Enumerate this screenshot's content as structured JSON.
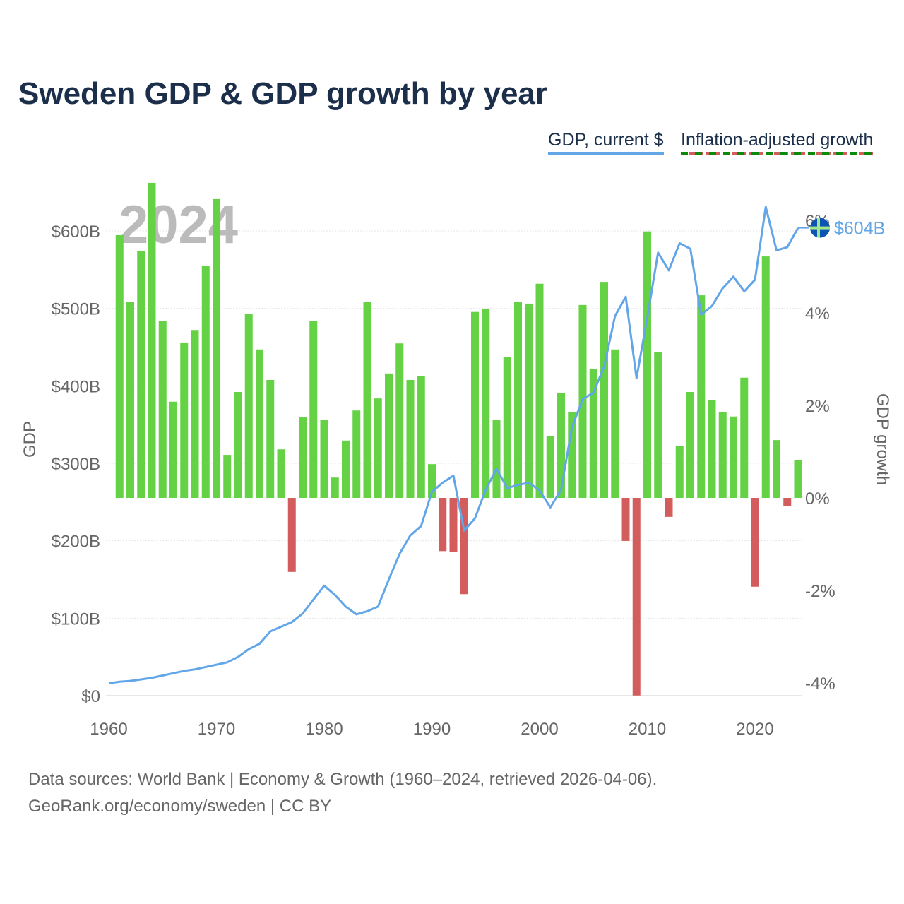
{
  "title": "Sweden GDP & GDP growth by year",
  "legend": {
    "gdp": "GDP, current $",
    "growth": "Inflation-adjusted growth"
  },
  "watermark_year": "2024",
  "end_label": "$604B",
  "source_line1": "Data sources: World Bank | Economy & Growth (1960–2024, retrieved 2026-04-06).",
  "source_line2": "GeoRank.org/economy/sweden | CC BY",
  "colors": {
    "line": "#62a6e8",
    "pos": "#64d244",
    "neg": "#d35c5c",
    "title": "#1b2f4b"
  },
  "chart_data": {
    "type": "bar+line",
    "title": "Sweden GDP & GDP growth by year",
    "xlabel": "",
    "ylabel": "GDP",
    "y2label": "GDP growth",
    "xticks": [
      1960,
      1970,
      1980,
      1990,
      2000,
      2010,
      2020
    ],
    "yticks": [
      "$0",
      "$100B",
      "$200B",
      "$300B",
      "$400B",
      "$500B",
      "$600B"
    ],
    "y2ticks": [
      "-4%",
      "-2%",
      "0%",
      "2%",
      "4%",
      "6%"
    ],
    "ylim": [
      0,
      600
    ],
    "y2lim": [
      -4.27,
      6
    ],
    "gdp_years_start": 1960,
    "gdp_billions": [
      16,
      18,
      19,
      21,
      23,
      26,
      29,
      32,
      34,
      37,
      40,
      43,
      50,
      60,
      67,
      83,
      89,
      95,
      106,
      124,
      142,
      130,
      115,
      105,
      109,
      115,
      150,
      183,
      207,
      219,
      263,
      275,
      284,
      213,
      229,
      266,
      293,
      268,
      272,
      275,
      265,
      243,
      266,
      346,
      383,
      391,
      425,
      490,
      515,
      410,
      488,
      572,
      549,
      584,
      577,
      492,
      503,
      526,
      541,
      522,
      537,
      631,
      575,
      579,
      604
    ],
    "growth_years_start": 1961,
    "growth_pct": [
      5.68,
      4.24,
      5.33,
      6.81,
      3.82,
      2.08,
      3.36,
      3.63,
      5.01,
      6.46,
      0.93,
      2.29,
      3.97,
      3.21,
      2.55,
      1.05,
      -1.6,
      1.74,
      3.83,
      1.69,
      0.44,
      1.24,
      1.89,
      4.23,
      2.15,
      2.69,
      3.34,
      2.55,
      2.64,
      0.73,
      -1.15,
      -1.16,
      -2.08,
      4.02,
      4.09,
      1.69,
      3.05,
      4.24,
      4.2,
      4.63,
      1.34,
      2.27,
      1.86,
      4.17,
      2.78,
      4.67,
      3.21,
      -0.93,
      -4.27,
      5.76,
      3.16,
      -0.41,
      1.13,
      2.29,
      4.38,
      2.12,
      1.86,
      1.76,
      2.6,
      -1.92,
      5.22,
      1.25,
      -0.18,
      0.81
    ]
  }
}
